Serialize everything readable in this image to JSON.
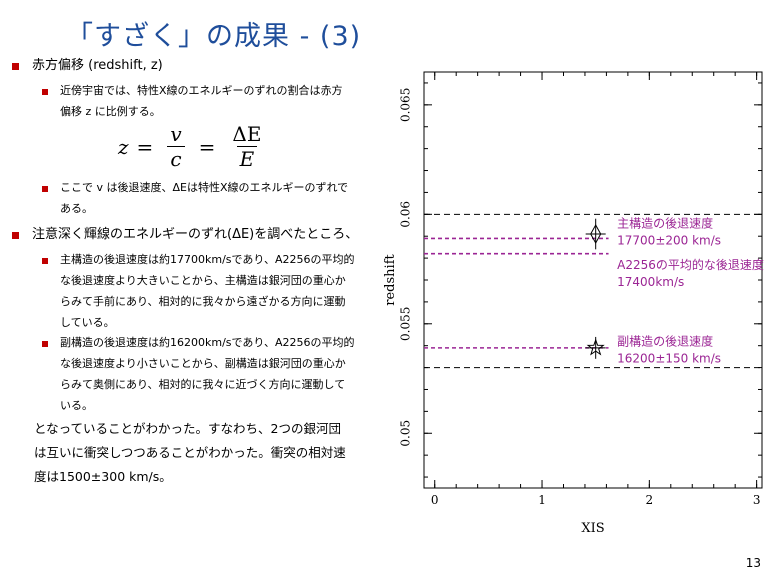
{
  "slide": {
    "title": "「すざく」の成果 - (3)",
    "page_number": "13"
  },
  "body": {
    "b1": "赤方偏移 (redshift, z)",
    "b1_sub1_line1": "近傍宇宙では、特性X線のエネルギーのずれの割合は赤方",
    "b1_sub1_line2": "偏移 z に比例する。",
    "formula": {
      "z": "z",
      "v": "v",
      "c": "c",
      "dE": "ΔE",
      "E": "E",
      "eq": "="
    },
    "b1_sub2_line1": "ここで v は後退速度、ΔEは特性X線のエネルギーのずれで",
    "b1_sub2_line2": "ある。",
    "b2": "注意深く輝線のエネルギーのずれ(ΔE)を調べたところ、",
    "b2_sub1": [
      "主構造の後退速度は約17700km/sであり、A2256の平均的",
      "な後退速度より大きいことから、主構造は銀河団の重心か",
      "らみて手前にあり、相対的に我々から遠ざかる方向に運動",
      "している。"
    ],
    "b2_sub2": [
      "副構造の後退速度は約16200km/sであり、A2256の平均的",
      "な後退速度より小さいことから、副構造は銀河団の重心か",
      "らみて奥側にあり、相対的に我々に近づく方向に運動して",
      "いる。"
    ],
    "conclusion": [
      "となっていることがわかった。すなわち、2つの銀河団",
      "は互いに衝突しつつあることがわかった。衝突の相対速",
      "度は1500±300 km/s。"
    ]
  },
  "chart_data": {
    "type": "scatter",
    "xlabel": "XIS",
    "ylabel": "redshift",
    "xlim": [
      -0.1,
      3.05
    ],
    "ylim": [
      0.0475,
      0.0665
    ],
    "xticks": [
      0,
      1,
      2,
      3
    ],
    "yticks": [
      0.05,
      0.055,
      0.06,
      0.065
    ],
    "ytick_labels": [
      "0.05",
      "0.055",
      "0.06",
      "0.065"
    ],
    "points": [
      {
        "name": "main",
        "x": 1.5,
        "y": 0.0591,
        "yerr": 0.0007,
        "marker": "diamond"
      },
      {
        "name": "sub",
        "x": 1.5,
        "y": 0.0539,
        "yerr": 0.0005,
        "marker": "star"
      }
    ],
    "black_dashed_lines": [
      0.06,
      0.053
    ],
    "magenta_dashed_lines": [
      0.0589,
      0.0582,
      0.0539
    ],
    "annotations": [
      {
        "lines": [
          "主構造の後退速度",
          "17700±200 km/s"
        ],
        "y": 0.0594
      },
      {
        "lines": [
          "A2256の平均的な後退速度",
          "17400km/s"
        ],
        "y": 0.0575
      },
      {
        "lines": [
          "副構造の後退速度",
          "16200±150 km/s"
        ],
        "y": 0.054
      }
    ],
    "colors": {
      "accent": "#9b2594",
      "axis": "#000000",
      "dash": "#000000"
    }
  }
}
